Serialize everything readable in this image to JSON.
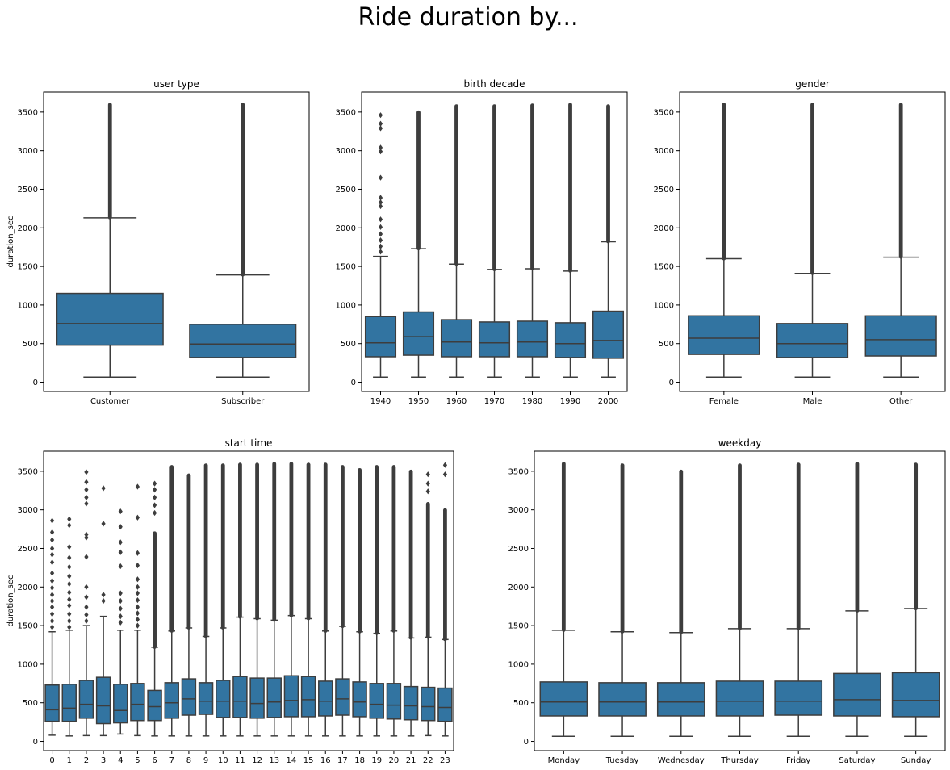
{
  "suptitle": "Ride duration by...",
  "colors": {
    "box": "#3274a1",
    "line": "#3d3d3d",
    "frame": "#000000"
  },
  "chart_data": [
    {
      "type": "box",
      "title": "user type",
      "ylabel": "duration_sec",
      "ylim": [
        -120,
        3760
      ],
      "yticks": [
        0,
        500,
        1000,
        1500,
        2000,
        2500,
        3000,
        3500
      ],
      "categories": [
        "Customer",
        "Subscriber"
      ],
      "boxes": [
        {
          "q1": 480,
          "median": 760,
          "q3": 1150,
          "whislo": 65,
          "whishi": 2130,
          "fliers_max": 3600,
          "fliers_band": [
            2130,
            3600
          ]
        },
        {
          "q1": 320,
          "median": 495,
          "q3": 750,
          "whislo": 65,
          "whishi": 1390,
          "fliers_max": 3600,
          "fliers_band": [
            1390,
            3600
          ]
        }
      ]
    },
    {
      "type": "box",
      "title": "birth decade",
      "ylabel": "",
      "ylim": [
        -120,
        3760
      ],
      "yticks": [
        0,
        500,
        1000,
        1500,
        2000,
        2500,
        3000,
        3500
      ],
      "categories": [
        "1940",
        "1950",
        "1960",
        "1970",
        "1980",
        "1990",
        "2000"
      ],
      "boxes": [
        {
          "q1": 330,
          "median": 510,
          "q3": 850,
          "whislo": 65,
          "whishi": 1630,
          "fliers": [
            1690,
            1760,
            1840,
            1920,
            2010,
            2110,
            2280,
            2330,
            2390,
            2650,
            2990,
            3040,
            3290,
            3350,
            3460
          ]
        },
        {
          "q1": 350,
          "median": 590,
          "q3": 910,
          "whislo": 65,
          "whishi": 1730,
          "fliers_band": [
            1730,
            3500
          ]
        },
        {
          "q1": 330,
          "median": 520,
          "q3": 810,
          "whislo": 65,
          "whishi": 1530,
          "fliers_band": [
            1530,
            3580
          ]
        },
        {
          "q1": 330,
          "median": 510,
          "q3": 780,
          "whislo": 65,
          "whishi": 1460,
          "fliers_band": [
            1460,
            3580
          ]
        },
        {
          "q1": 330,
          "median": 520,
          "q3": 790,
          "whislo": 65,
          "whishi": 1470,
          "fliers_band": [
            1470,
            3590
          ]
        },
        {
          "q1": 320,
          "median": 500,
          "q3": 770,
          "whislo": 65,
          "whishi": 1440,
          "fliers_band": [
            1440,
            3600
          ]
        },
        {
          "q1": 310,
          "median": 540,
          "q3": 920,
          "whislo": 65,
          "whishi": 1820,
          "fliers_band": [
            1820,
            3580
          ]
        }
      ]
    },
    {
      "type": "box",
      "title": "gender",
      "ylabel": "",
      "ylim": [
        -120,
        3760
      ],
      "yticks": [
        0,
        500,
        1000,
        1500,
        2000,
        2500,
        3000,
        3500
      ],
      "categories": [
        "Female",
        "Male",
        "Other"
      ],
      "boxes": [
        {
          "q1": 360,
          "median": 570,
          "q3": 860,
          "whislo": 65,
          "whishi": 1600,
          "fliers_band": [
            1600,
            3600
          ]
        },
        {
          "q1": 320,
          "median": 500,
          "q3": 760,
          "whislo": 65,
          "whishi": 1410,
          "fliers_band": [
            1410,
            3600
          ]
        },
        {
          "q1": 340,
          "median": 550,
          "q3": 860,
          "whislo": 65,
          "whishi": 1620,
          "fliers_band": [
            1620,
            3600
          ]
        }
      ]
    },
    {
      "type": "box",
      "title": "start time",
      "ylabel": "duration_sec",
      "ylim": [
        -120,
        3760
      ],
      "yticks": [
        0,
        500,
        1000,
        1500,
        2000,
        2500,
        3000,
        3500
      ],
      "categories": [
        "0",
        "1",
        "2",
        "3",
        "4",
        "5",
        "6",
        "7",
        "8",
        "9",
        "10",
        "11",
        "12",
        "13",
        "14",
        "15",
        "16",
        "17",
        "18",
        "19",
        "20",
        "21",
        "22",
        "23"
      ],
      "boxes": [
        {
          "q1": 260,
          "median": 410,
          "q3": 730,
          "whislo": 80,
          "whishi": 1420,
          "fliers": [
            1480,
            1560,
            1650,
            1740,
            1820,
            1900,
            1990,
            2080,
            2180,
            2320,
            2420,
            2500,
            2610,
            2710,
            2860
          ]
        },
        {
          "q1": 260,
          "median": 430,
          "q3": 740,
          "whislo": 70,
          "whishi": 1440,
          "fliers": [
            1480,
            1560,
            1650,
            1760,
            1840,
            1930,
            2040,
            2140,
            2260,
            2380,
            2520,
            2800,
            2880
          ]
        },
        {
          "q1": 300,
          "median": 480,
          "q3": 790,
          "whislo": 75,
          "whishi": 1500,
          "fliers": [
            1560,
            1640,
            1740,
            1870,
            2000,
            2390,
            2640,
            2680,
            3080,
            3160,
            3260,
            3360,
            3490
          ]
        },
        {
          "q1": 230,
          "median": 460,
          "q3": 830,
          "whislo": 75,
          "whishi": 1620,
          "fliers": [
            1820,
            1900,
            2820,
            3280
          ]
        },
        {
          "q1": 240,
          "median": 400,
          "q3": 740,
          "whislo": 95,
          "whishi": 1440,
          "fliers": [
            1540,
            1620,
            1720,
            1820,
            1920,
            2270,
            2450,
            2580,
            2780,
            2980
          ]
        },
        {
          "q1": 270,
          "median": 480,
          "q3": 750,
          "whislo": 75,
          "whishi": 1440,
          "fliers": [
            1500,
            1580,
            1660,
            1740,
            1830,
            1920,
            2000,
            2100,
            2280,
            2440,
            2900,
            3300
          ]
        },
        {
          "q1": 270,
          "median": 450,
          "q3": 660,
          "whislo": 70,
          "whishi": 1220,
          "fliers_band": [
            1220,
            2700
          ],
          "fliers": [
            2960,
            3060,
            3160,
            3260,
            3340
          ]
        },
        {
          "q1": 300,
          "median": 500,
          "q3": 760,
          "whislo": 70,
          "whishi": 1430,
          "fliers_band": [
            1430,
            3560
          ]
        },
        {
          "q1": 340,
          "median": 550,
          "q3": 810,
          "whislo": 70,
          "whishi": 1470,
          "fliers_band": [
            1470,
            3450
          ]
        },
        {
          "q1": 350,
          "median": 520,
          "q3": 760,
          "whislo": 70,
          "whishi": 1360,
          "fliers_band": [
            1360,
            3580
          ]
        },
        {
          "q1": 310,
          "median": 520,
          "q3": 790,
          "whislo": 70,
          "whishi": 1470,
          "fliers_band": [
            1470,
            3580
          ]
        },
        {
          "q1": 310,
          "median": 520,
          "q3": 840,
          "whislo": 70,
          "whishi": 1610,
          "fliers_band": [
            1610,
            3590
          ]
        },
        {
          "q1": 300,
          "median": 490,
          "q3": 820,
          "whislo": 70,
          "whishi": 1590,
          "fliers_band": [
            1590,
            3590
          ]
        },
        {
          "q1": 310,
          "median": 510,
          "q3": 820,
          "whislo": 70,
          "whishi": 1570,
          "fliers_band": [
            1570,
            3600
          ]
        },
        {
          "q1": 320,
          "median": 530,
          "q3": 850,
          "whislo": 70,
          "whishi": 1630,
          "fliers_band": [
            1630,
            3600
          ]
        },
        {
          "q1": 320,
          "median": 540,
          "q3": 840,
          "whislo": 70,
          "whishi": 1590,
          "fliers_band": [
            1590,
            3590
          ]
        },
        {
          "q1": 330,
          "median": 520,
          "q3": 780,
          "whislo": 70,
          "whishi": 1430,
          "fliers_band": [
            1430,
            3590
          ]
        },
        {
          "q1": 340,
          "median": 550,
          "q3": 810,
          "whislo": 70,
          "whishi": 1490,
          "fliers_band": [
            1490,
            3560
          ]
        },
        {
          "q1": 320,
          "median": 510,
          "q3": 770,
          "whislo": 70,
          "whishi": 1420,
          "fliers_band": [
            1420,
            3520
          ]
        },
        {
          "q1": 300,
          "median": 480,
          "q3": 750,
          "whislo": 70,
          "whishi": 1400,
          "fliers_band": [
            1400,
            3560
          ]
        },
        {
          "q1": 290,
          "median": 470,
          "q3": 750,
          "whislo": 70,
          "whishi": 1430,
          "fliers_band": [
            1430,
            3560
          ]
        },
        {
          "q1": 280,
          "median": 460,
          "q3": 710,
          "whislo": 70,
          "whishi": 1340,
          "fliers_band": [
            1340,
            3500
          ]
        },
        {
          "q1": 270,
          "median": 450,
          "q3": 700,
          "whislo": 75,
          "whishi": 1350,
          "fliers_band": [
            1350,
            3080
          ],
          "fliers": [
            3240,
            3340,
            3460
          ]
        },
        {
          "q1": 260,
          "median": 440,
          "q3": 690,
          "whislo": 70,
          "whishi": 1320,
          "fliers_band": [
            1320,
            3000
          ],
          "fliers": [
            3460,
            3580
          ]
        }
      ]
    },
    {
      "type": "box",
      "title": "weekday",
      "ylabel": "",
      "ylim": [
        -120,
        3760
      ],
      "yticks": [
        0,
        500,
        1000,
        1500,
        2000,
        2500,
        3000,
        3500
      ],
      "categories": [
        "Monday",
        "Tuesday",
        "Wednesday",
        "Thursday",
        "Friday",
        "Saturday",
        "Sunday"
      ],
      "boxes": [
        {
          "q1": 330,
          "median": 510,
          "q3": 770,
          "whislo": 65,
          "whishi": 1440,
          "fliers_band": [
            1440,
            3600
          ]
        },
        {
          "q1": 330,
          "median": 510,
          "q3": 760,
          "whislo": 65,
          "whishi": 1420,
          "fliers_band": [
            1420,
            3580
          ]
        },
        {
          "q1": 330,
          "median": 510,
          "q3": 760,
          "whislo": 65,
          "whishi": 1410,
          "fliers_band": [
            1410,
            3500
          ]
        },
        {
          "q1": 330,
          "median": 520,
          "q3": 780,
          "whislo": 65,
          "whishi": 1460,
          "fliers_band": [
            1460,
            3580
          ]
        },
        {
          "q1": 340,
          "median": 520,
          "q3": 780,
          "whislo": 65,
          "whishi": 1460,
          "fliers_band": [
            1460,
            3590
          ]
        },
        {
          "q1": 330,
          "median": 540,
          "q3": 880,
          "whislo": 65,
          "whishi": 1690,
          "fliers_band": [
            1690,
            3600
          ]
        },
        {
          "q1": 320,
          "median": 530,
          "q3": 890,
          "whislo": 65,
          "whishi": 1720,
          "fliers_band": [
            1720,
            3590
          ]
        }
      ]
    }
  ]
}
